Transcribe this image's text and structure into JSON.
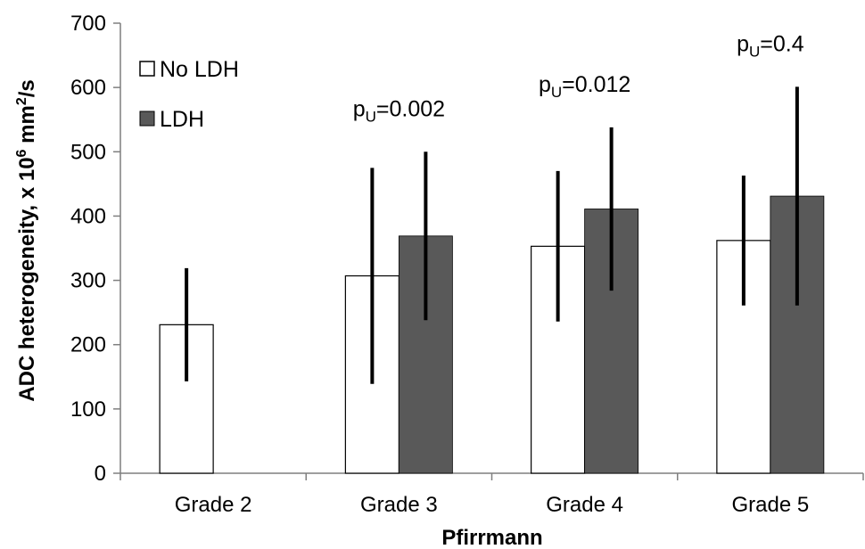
{
  "chart_data": {
    "type": "bar",
    "categories": [
      "Grade 2",
      "Grade 3",
      "Grade 4",
      "Grade 5"
    ],
    "series": [
      {
        "name": "No LDH",
        "color": "#ffffff",
        "values": [
          231,
          307,
          353,
          362
        ],
        "errors": [
          88,
          168,
          117,
          101
        ]
      },
      {
        "name": "LDH",
        "color": "#595959",
        "values": [
          null,
          369,
          411,
          431
        ],
        "errors": [
          null,
          131,
          127,
          170
        ]
      }
    ],
    "xlabel": "Pfirrmann",
    "ylabel": {
      "prefix": "ADC  heterogeneity, x 10",
      "sup": "6",
      " mid": " mm",
      "mid": " mm",
      "sup2": "2",
      "suffix": "/s"
    },
    "ylim": [
      0,
      700
    ],
    "yticks": [
      0,
      100,
      200,
      300,
      400,
      500,
      600,
      700
    ],
    "grid": false,
    "legend_position": "top-left",
    "annotations": [
      {
        "category": "Grade 3",
        "p": "p",
        "sub": "U",
        "text": "=0.002"
      },
      {
        "category": "Grade 4",
        "p": "p",
        "sub": "U",
        "text": "=0.012"
      },
      {
        "category": "Grade 5",
        "p": "p",
        "sub": "U",
        "text": "=0.4"
      }
    ]
  }
}
